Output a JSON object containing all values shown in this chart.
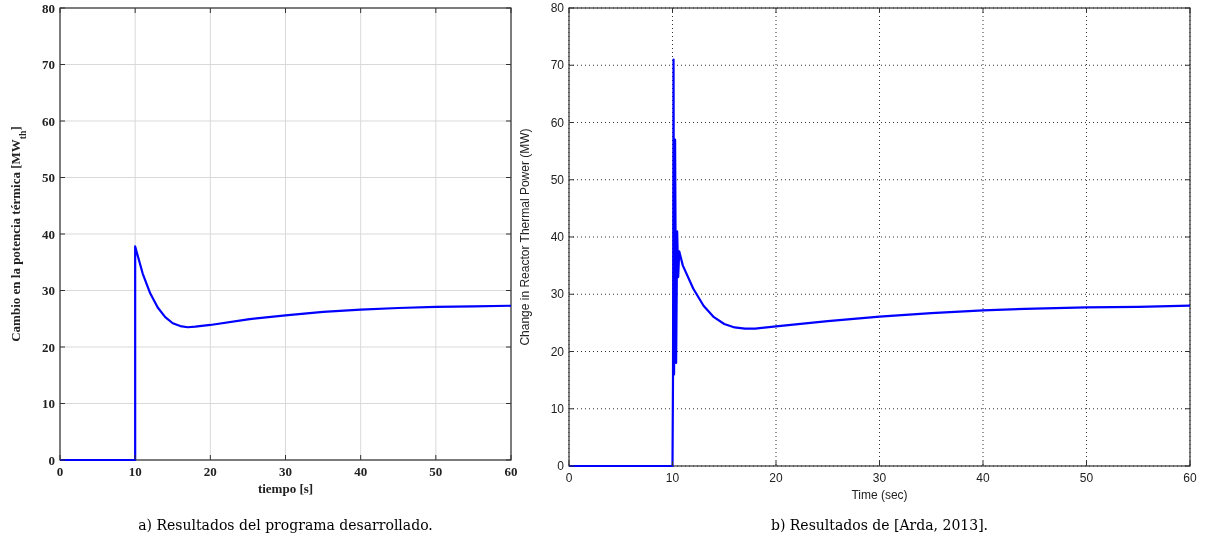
{
  "chart_data": [
    {
      "type": "line",
      "xlabel": "tiempo [s]",
      "ylabel": "Cambio en la potencia térmica [MW$_{th}$]",
      "annotations": [
        "a) Resultados del programa desarrollado."
      ],
      "xlim": [
        0,
        60
      ],
      "ylim": [
        0,
        80
      ],
      "xticks": [
        0,
        10,
        20,
        30,
        40,
        50,
        60
      ],
      "yticks": [
        0,
        10,
        20,
        30,
        40,
        50,
        60,
        70,
        80
      ],
      "grid": true,
      "series": [
        {
          "color": "#0000ff",
          "x": [
            0,
            10,
            10,
            11,
            12,
            13,
            14,
            15,
            16,
            17,
            18,
            20,
            25,
            30,
            35,
            40,
            45,
            50,
            55,
            60
          ],
          "values": [
            0,
            0,
            37.8,
            33,
            29.5,
            27,
            25.3,
            24.2,
            23.7,
            23.5,
            23.6,
            23.9,
            24.9,
            25.6,
            26.2,
            26.6,
            26.9,
            27.1,
            27.2,
            27.3
          ]
        }
      ]
    },
    {
      "type": "line",
      "xlabel": "Time (sec)",
      "ylabel": "Change in Reactor Thermal Power (MW)",
      "annotations": [
        "b) Resultados de [Arda, 2013]."
      ],
      "xlim": [
        0,
        60
      ],
      "ylim": [
        0,
        80
      ],
      "xticks": [
        0,
        10,
        20,
        30,
        40,
        50,
        60
      ],
      "yticks": [
        0,
        10,
        20,
        30,
        40,
        50,
        60,
        70,
        80
      ],
      "grid": true,
      "series": [
        {
          "color": "#0000ff",
          "x": [
            0,
            10,
            10.05,
            10.1,
            10.15,
            10.25,
            10.35,
            10.45,
            10.55,
            10.65,
            11,
            12,
            13,
            14,
            15,
            16,
            17,
            18,
            20,
            25,
            30,
            35,
            40,
            45,
            50,
            55,
            60
          ],
          "values": [
            0,
            0,
            16,
            71,
            16,
            57,
            18,
            41,
            33,
            37.5,
            35,
            31,
            28,
            26,
            24.8,
            24.2,
            24,
            24,
            24.4,
            25.3,
            26.1,
            26.7,
            27.2,
            27.5,
            27.7,
            27.8,
            28
          ]
        }
      ]
    }
  ]
}
